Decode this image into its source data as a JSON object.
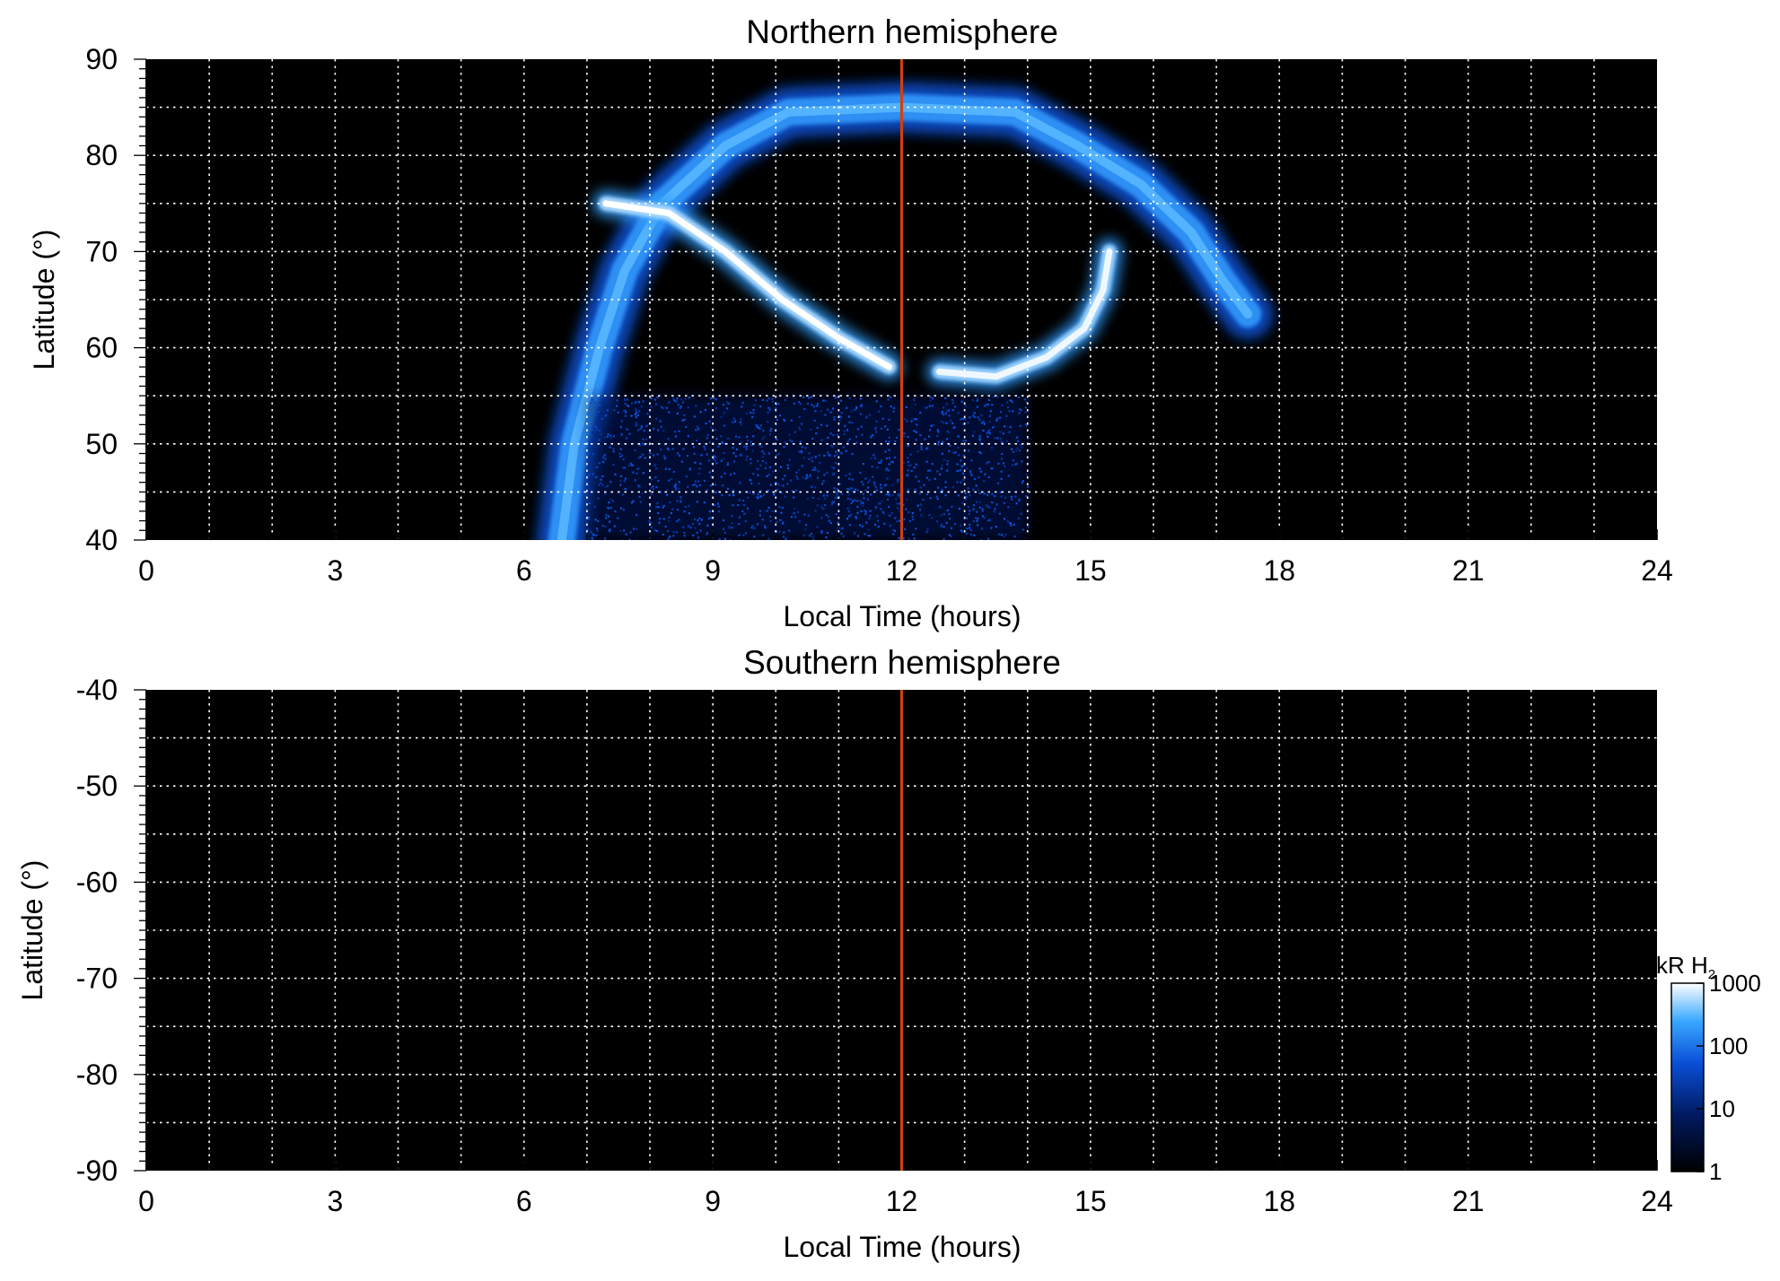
{
  "chart_data": [
    {
      "type": "heatmap",
      "title": "Northern hemisphere",
      "xlabel": "Local Time (hours)",
      "ylabel": "Latitude (°)",
      "xlim": [
        0,
        24
      ],
      "ylim": [
        40,
        90
      ],
      "xticks": [
        "0",
        "3",
        "6",
        "9",
        "12",
        "15",
        "18",
        "21",
        "24"
      ],
      "yticks": [
        "40",
        "50",
        "60",
        "70",
        "80",
        "90"
      ],
      "grid": true,
      "noon_marker": {
        "x": 12,
        "color": "#d04010"
      },
      "features": [
        {
          "name": "main oval arc",
          "peak_kR": 300,
          "points": [
            [
              6.6,
              40
            ],
            [
              6.8,
              50
            ],
            [
              7.2,
              60
            ],
            [
              7.6,
              68
            ],
            [
              8.2,
              75
            ],
            [
              9.2,
              81
            ],
            [
              10.2,
              84.5
            ],
            [
              12,
              85
            ],
            [
              13.8,
              84.5
            ],
            [
              14.8,
              81
            ],
            [
              15.8,
              77
            ],
            [
              16.6,
              72
            ],
            [
              17.1,
              67
            ],
            [
              17.5,
              63.5
            ]
          ]
        },
        {
          "name": "bright dawn arc",
          "peak_kR": 1000,
          "points": [
            [
              7.3,
              75
            ],
            [
              8.3,
              74
            ],
            [
              9.2,
              70
            ],
            [
              10.1,
              65
            ],
            [
              11.0,
              61
            ],
            [
              11.8,
              58
            ]
          ]
        },
        {
          "name": "afternoon spiral",
          "peak_kR": 900,
          "points": [
            [
              12.6,
              57.5
            ],
            [
              13.5,
              57
            ],
            [
              14.3,
              59
            ],
            [
              14.9,
              62
            ],
            [
              15.2,
              66
            ],
            [
              15.3,
              70
            ]
          ]
        },
        {
          "name": "low-latitude diffuse emission",
          "peak_kR": 30,
          "lt_range": [
            7,
            14
          ],
          "lat_range": [
            40,
            55
          ]
        }
      ]
    },
    {
      "type": "heatmap",
      "title": "Southern hemisphere",
      "xlabel": "Local Time (hours)",
      "ylabel": "Latitude (°)",
      "xlim": [
        0,
        24
      ],
      "ylim": [
        -90,
        -40
      ],
      "xticks": [
        "0",
        "3",
        "6",
        "9",
        "12",
        "15",
        "18",
        "21",
        "24"
      ],
      "yticks": [
        "-40",
        "-50",
        "-60",
        "-70",
        "-80",
        "-90"
      ],
      "grid": true,
      "noon_marker": {
        "x": 12,
        "color": "#d04010"
      },
      "features": []
    }
  ],
  "colorbar": {
    "title": "kR H",
    "title_sub": "2",
    "scale": "log",
    "range": [
      1,
      1000
    ],
    "ticks": [
      "1",
      "10",
      "100",
      "1000"
    ],
    "colors": [
      "#000000",
      "#001a60",
      "#0a50d8",
      "#3aa8ff",
      "#ffffff"
    ]
  }
}
